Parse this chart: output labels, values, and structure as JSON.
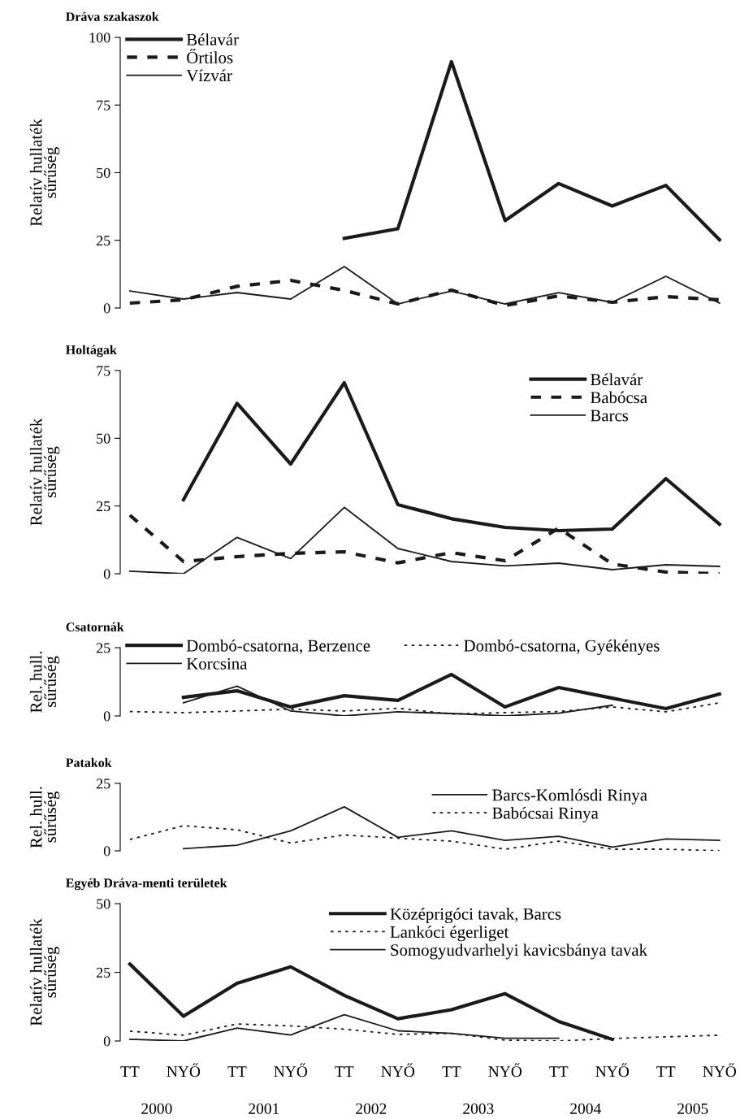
{
  "chart_data": [
    {
      "type": "line",
      "title": "Dráva szakaszok",
      "ylabel": "Relatív hullaték\nsűrűség",
      "categories": [
        null,
        null,
        null,
        null,
        null,
        null,
        null,
        null,
        null,
        null,
        null,
        null
      ],
      "ylim": [
        0,
        100
      ],
      "yticks": [
        0,
        25,
        50,
        75,
        100
      ],
      "grid": false,
      "legend": "top left",
      "series": [
        {
          "name": "Bélavár",
          "color": "#1a1a1a",
          "line_style": "solid",
          "values": [
            null,
            null,
            null,
            null,
            25.7,
            29.3,
            91,
            32.3,
            46,
            37.7,
            45.3,
            25.2
          ]
        },
        {
          "name": "Őrtilos",
          "color": "#1a1a1a",
          "line_style": "dashed",
          "values": [
            1.8,
            3,
            8,
            10.2,
            6.5,
            1.5,
            6.6,
            0.9,
            4.5,
            2.1,
            4.2,
            3
          ]
        },
        {
          "name": "Vízvár",
          "color": "#1a1a1a",
          "line_style": "solid",
          "values": [
            6.3,
            3.3,
            5.7,
            3.3,
            15.3,
            1.5,
            6.3,
            1.5,
            5.7,
            2.1,
            11.7,
            1.8
          ]
        }
      ]
    },
    {
      "type": "line",
      "title": "Holtágak",
      "ylabel": "Relatív hullaték\nsűrűség",
      "categories": [
        null,
        null,
        null,
        null,
        null,
        null,
        null,
        null,
        null,
        null,
        null,
        null
      ],
      "ylim": [
        0,
        75
      ],
      "yticks": [
        0,
        25,
        50,
        75
      ],
      "grid": false,
      "legend": "top right",
      "series": [
        {
          "name": "Bélavár",
          "color": "#1a1a1a",
          "line_style": "solid",
          "values": [
            null,
            27.3,
            62.9,
            40.5,
            70.5,
            25.5,
            20.3,
            17.1,
            15.9,
            16.5,
            35.1,
            18.3
          ]
        },
        {
          "name": "Babócsa",
          "color": "#1a1a1a",
          "line_style": "dashed",
          "values": [
            21.6,
            4.5,
            6.3,
            7.5,
            8.1,
            4,
            7.8,
            4.8,
            16.8,
            3.6,
            0.6,
            0
          ]
        },
        {
          "name": "Barcs",
          "color": "#1a1a1a",
          "line_style": "solid",
          "values": [
            0.9,
            0,
            13.4,
            5.6,
            24.5,
            9.3,
            4.5,
            2.9,
            3.9,
            1.5,
            3.3,
            2.7
          ]
        }
      ]
    },
    {
      "type": "line",
      "title": "Csatornák",
      "ylabel": "Rel. hull.\nsűrűség",
      "categories": [
        null,
        null,
        null,
        null,
        null,
        null,
        null,
        null,
        null,
        null,
        null,
        null
      ],
      "ylim": [
        0,
        25
      ],
      "yticks": [
        0,
        25
      ],
      "grid": false,
      "legend": "top",
      "series": [
        {
          "name": "Dombó-csatorna, Berzence",
          "color": "#1a1a1a",
          "line_style": "solid",
          "values": [
            null,
            6.8,
            9.2,
            3.3,
            7.4,
            5.7,
            15.2,
            3.3,
            10.4,
            6.5,
            2.7,
            8
          ]
        },
        {
          "name": "Dombó-csatorna, Gyékényes",
          "color": "#1a1a1a",
          "line_style": "dotted",
          "values": [
            1.6,
            1.2,
            1.8,
            2.5,
            1.8,
            2.8,
            0.7,
            1.2,
            1.6,
            3.3,
            1.5,
            4.8
          ]
        },
        {
          "name": "Korcsina",
          "color": "#1a1a1a",
          "line_style": "solid",
          "values": [
            null,
            4.8,
            10.9,
            1.8,
            0,
            1.5,
            0.9,
            0,
            1,
            3.9,
            null,
            null
          ]
        }
      ]
    },
    {
      "type": "line",
      "title": "Patakok",
      "ylabel": "Rel. hull.\nsűrűség",
      "categories": [
        null,
        null,
        null,
        null,
        null,
        null,
        null,
        null,
        null,
        null,
        null,
        null
      ],
      "ylim": [
        0,
        25
      ],
      "yticks": [
        0,
        25
      ],
      "grid": false,
      "legend": "top right",
      "series": [
        {
          "name": "Barcs-Komlósdi Rinya",
          "color": "#1a1a1a",
          "line_style": "solid",
          "values": [
            null,
            0.8,
            2.1,
            7.4,
            16.3,
            5,
            7.4,
            3.9,
            5.4,
            1.4,
            4.4,
            3.9
          ]
        },
        {
          "name": "Babócsai Rinya",
          "color": "#1a1a1a",
          "line_style": "dotted",
          "values": [
            4.2,
            9.3,
            7.8,
            2.9,
            5.9,
            4.7,
            3.6,
            0.6,
            3.6,
            0.6,
            0.6,
            0
          ]
        }
      ]
    },
    {
      "type": "line",
      "title": "Egyéb Dráva-menti területek",
      "ylabel": "Relatív hullaték\nsűrűség",
      "categories": [
        "TT",
        "NYŐ",
        "TT",
        "NYŐ",
        "TT",
        "NYŐ",
        "TT",
        "NYŐ",
        "TT",
        "NYŐ",
        "TT",
        "NYŐ"
      ],
      "ylim": [
        0,
        50
      ],
      "yticks": [
        0,
        25,
        50
      ],
      "grid": false,
      "legend": "top right",
      "annotations": [
        "2000",
        "2001",
        "2002",
        "2003",
        "2004",
        "2005"
      ],
      "series": [
        {
          "name": "Középrigóci tavak, Barcs",
          "color": "#1a1a1a",
          "line_style": "solid",
          "values": [
            28,
            9,
            21,
            27,
            16.6,
            8.1,
            11.4,
            17.2,
            7.1,
            0.6,
            null,
            null
          ]
        },
        {
          "name": "Lankóci égerliget",
          "color": "#1a1a1a",
          "line_style": "dotted",
          "values": [
            3.6,
            2.1,
            6.2,
            5.5,
            4.3,
            2.4,
            2.8,
            0.3,
            0,
            0.9,
            1.5,
            2.1
          ]
        },
        {
          "name": "Somogyudvarhelyi kavicsbánya tavak",
          "color": "#1a1a1a",
          "line_style": "solid",
          "values": [
            0.6,
            0,
            4.7,
            2.2,
            9.6,
            3.7,
            2.8,
            1,
            1,
            null,
            null,
            null
          ]
        }
      ]
    }
  ]
}
